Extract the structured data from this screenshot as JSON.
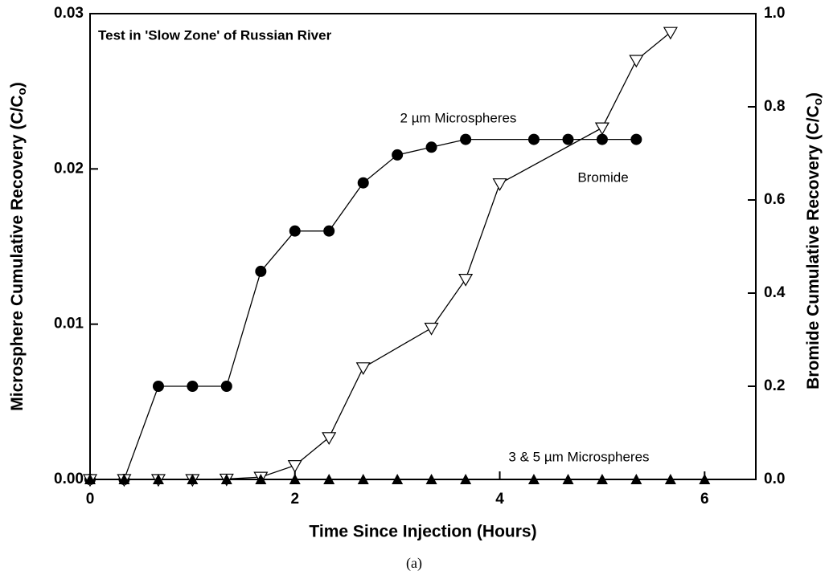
{
  "chart_data": {
    "type": "line",
    "title": "Test in 'Slow Zone' of Russian River",
    "xlabel": "Time Since Injection (Hours)",
    "ylabel": "Microsphere Cumulative Recovery (C/C",
    "ylabel_sub": "o",
    "ylabel_end": ")",
    "y2label": "Bromide Cumulative Recovery (C/C",
    "y2label_sub": "o",
    "y2label_end": ")",
    "caption": "(a)",
    "xlim": [
      0,
      6.5
    ],
    "xticks": [
      0,
      2,
      4,
      6
    ],
    "ylim": [
      0,
      0.03
    ],
    "yticks": [
      {
        "value": 0,
        "label": "0.00"
      },
      0.01,
      0.02,
      0.03
    ],
    "y2lim": [
      0,
      1
    ],
    "y2ticks": [
      {
        "value": 0,
        "label": "0.0"
      },
      0.2,
      0.4,
      0.6,
      0.8,
      {
        "value": 1,
        "label": "1.0"
      }
    ],
    "series": [
      {
        "name": "2 µm Microspheres",
        "marker": "circle",
        "color": "#000000",
        "x": [
          0,
          0.333,
          0.667,
          1,
          1.333,
          1.667,
          2,
          2.333,
          2.667,
          3,
          3.333,
          3.667,
          4.333,
          4.667,
          5,
          5.333
        ],
        "values": [
          0,
          0,
          0.006,
          0.006,
          0.006,
          0.0134,
          0.016,
          0.016,
          0.0191,
          0.0209,
          0.0214,
          0.0219,
          0.0219,
          0.0219,
          0.0219,
          0.0219
        ]
      },
      {
        "name": "Bromide",
        "marker": "triangle-down",
        "color": "#000000",
        "axis": "y2",
        "x": [
          0,
          0.333,
          0.667,
          1,
          1.333,
          1.667,
          2,
          2.333,
          2.667,
          3.333,
          3.667,
          4,
          5,
          5.333,
          5.667
        ],
        "values": [
          0,
          0,
          0,
          0,
          0.001,
          0.005,
          0.03,
          0.09,
          0.24,
          0.325,
          0.43,
          0.635,
          0.755,
          0.9,
          0.96
        ]
      },
      {
        "name": "3 & 5 µm Microspheres",
        "marker": "triangle-up",
        "color": "#000000",
        "x": [
          0,
          0.333,
          0.667,
          1,
          1.333,
          1.667,
          2,
          2.333,
          2.667,
          3,
          3.333,
          3.667,
          4.333,
          4.667,
          5,
          5.333,
          5.667,
          6
        ],
        "values": [
          0,
          0,
          0,
          0,
          0,
          0,
          0,
          0,
          0,
          0,
          0,
          0,
          0,
          0,
          0,
          0,
          0,
          0
        ]
      }
    ]
  }
}
